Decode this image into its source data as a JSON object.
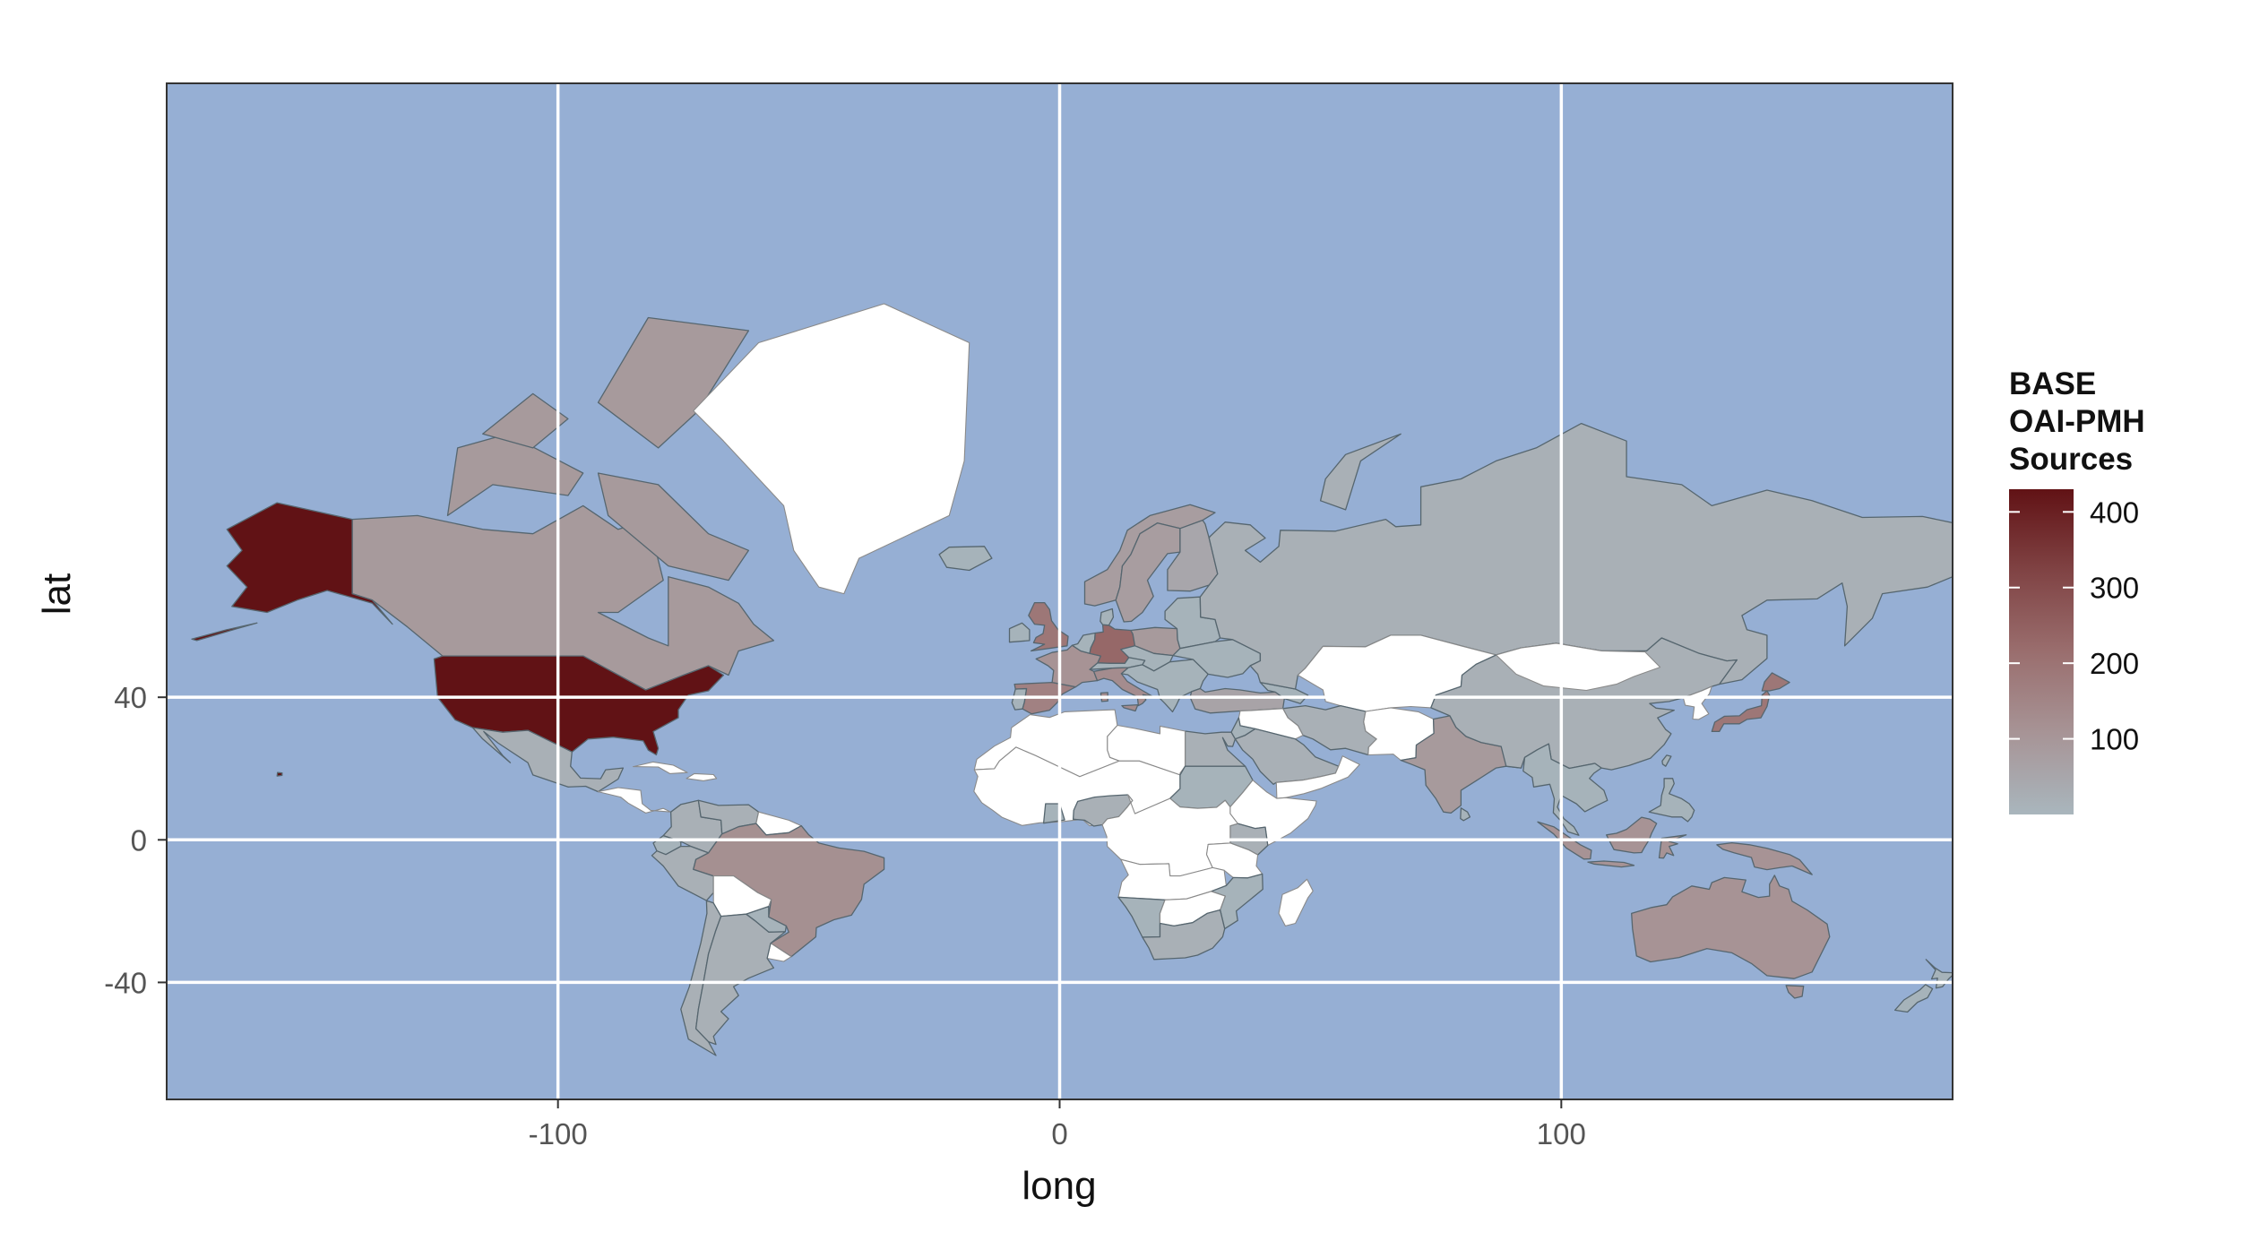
{
  "chart_data": {
    "type": "choropleth",
    "xlabel": "long",
    "ylabel": "lat",
    "xlim": [
      -178,
      178
    ],
    "ylim": [
      -62,
      88
    ],
    "projection": "mercator",
    "x_ticks": [
      -100,
      0,
      100
    ],
    "y_ticks": [
      -40,
      0,
      40
    ],
    "grid": true,
    "legend": {
      "title_lines": [
        "BASE",
        "OAI-PMH",
        "Sources"
      ],
      "breaks": [
        100,
        200,
        300,
        400
      ],
      "range": [
        0,
        430
      ],
      "placement": "right",
      "color_low": "#a9b6bd",
      "color_high": "#611215"
    },
    "colors": {
      "ocean": "#96afd4",
      "no_data": "#ffffff",
      "border": "#56666f",
      "grid": "#ffffff"
    },
    "regions": [
      {
        "name": "United States",
        "value": 430
      },
      {
        "name": "Alaska",
        "value": 430
      },
      {
        "name": "Canada",
        "value": 90
      },
      {
        "name": "Mexico",
        "value": 20
      },
      {
        "name": "Brazil",
        "value": 120
      },
      {
        "name": "Argentina",
        "value": 20
      },
      {
        "name": "Chile",
        "value": 20
      },
      {
        "name": "Colombia",
        "value": 20
      },
      {
        "name": "Peru",
        "value": 20
      },
      {
        "name": "Venezuela",
        "value": 20
      },
      {
        "name": "United Kingdom",
        "value": 190
      },
      {
        "name": "Germany",
        "value": 230
      },
      {
        "name": "France",
        "value": 110
      },
      {
        "name": "Spain",
        "value": 160
      },
      {
        "name": "Italy",
        "value": 130
      },
      {
        "name": "Sweden",
        "value": 80
      },
      {
        "name": "Norway",
        "value": 80
      },
      {
        "name": "Finland",
        "value": 50
      },
      {
        "name": "Poland",
        "value": 90
      },
      {
        "name": "Russia",
        "value": 20
      },
      {
        "name": "China",
        "value": 20
      },
      {
        "name": "India",
        "value": 90
      },
      {
        "name": "Japan",
        "value": 190
      },
      {
        "name": "Indonesia",
        "value": 110
      },
      {
        "name": "Australia",
        "value": 110
      },
      {
        "name": "South Africa",
        "value": 20
      },
      {
        "name": "Iran",
        "value": 20
      },
      {
        "name": "Turkey",
        "value": 60
      },
      {
        "name": "Egypt",
        "value": 20
      },
      {
        "name": "Saudi Arabia",
        "value": 20
      },
      {
        "name": "Nigeria",
        "value": 20
      },
      {
        "name": "Kenya",
        "value": 20
      }
    ]
  }
}
